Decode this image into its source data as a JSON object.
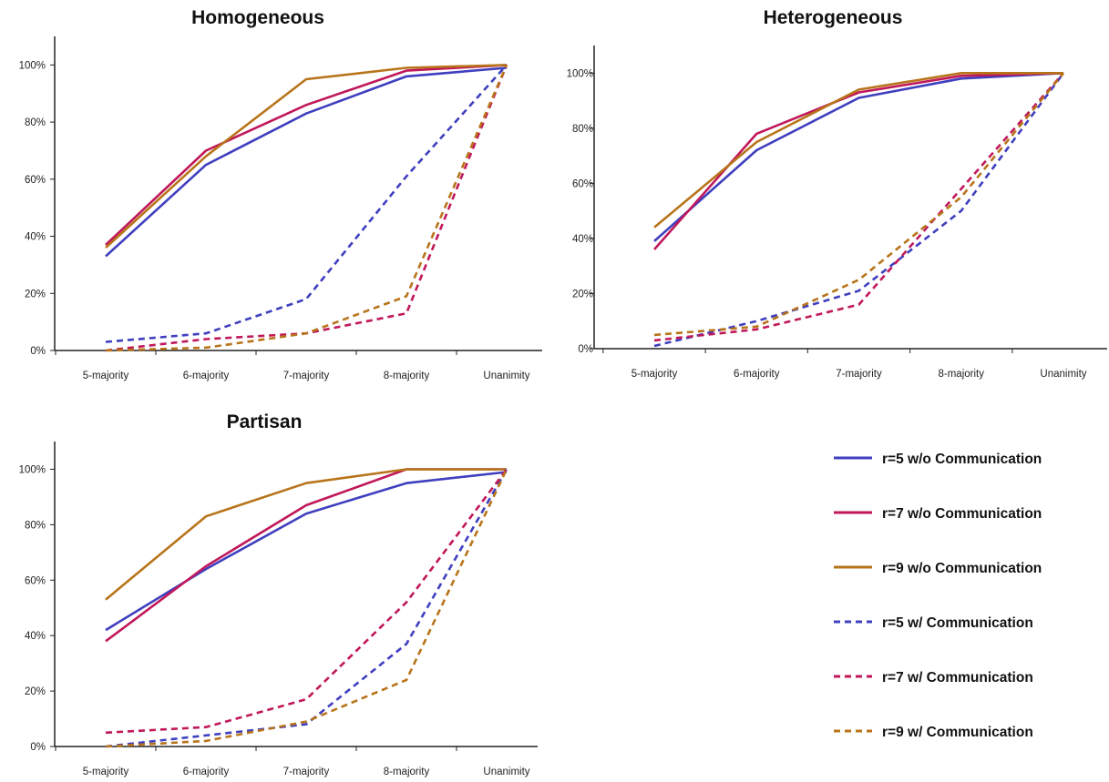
{
  "chart_data": [
    {
      "type": "line",
      "title": "Homogeneous",
      "categories": [
        "5-majority",
        "6-majority",
        "7-majority",
        "8-majority",
        "Unanimity"
      ],
      "ylim": [
        0,
        110
      ],
      "yticks": [
        "0%",
        "20%",
        "40%",
        "60%",
        "80%",
        "100%"
      ],
      "series": [
        {
          "name": "r=5 w/o Communication",
          "values": [
            33,
            65,
            83,
            96,
            99
          ]
        },
        {
          "name": "r=7 w/o Communication",
          "values": [
            37,
            70,
            86,
            98,
            100
          ]
        },
        {
          "name": "r=9 w/o Communication",
          "values": [
            36,
            68,
            95,
            99,
            100
          ]
        },
        {
          "name": "r=5 w/ Communication",
          "values": [
            3,
            6,
            18,
            61,
            100
          ]
        },
        {
          "name": "r=7 w/ Communication",
          "values": [
            0,
            4,
            6,
            13,
            100
          ]
        },
        {
          "name": "r=9 w/ Communication",
          "values": [
            0,
            1,
            6,
            19,
            100
          ]
        }
      ]
    },
    {
      "type": "line",
      "title": "Heterogeneous",
      "categories": [
        "5-majority",
        "6-majority",
        "7-majority",
        "8-majority",
        "Unanimity"
      ],
      "ylim": [
        0,
        110
      ],
      "yticks": [
        "0%",
        "20%",
        "40%",
        "60%",
        "80%",
        "100%"
      ],
      "series": [
        {
          "name": "r=5 w/o Communication",
          "values": [
            39,
            72,
            91,
            98,
            100
          ]
        },
        {
          "name": "r=7 w/o Communication",
          "values": [
            36,
            78,
            93,
            99,
            100
          ]
        },
        {
          "name": "r=9 w/o Communication",
          "values": [
            44,
            75,
            94,
            100,
            100
          ]
        },
        {
          "name": "r=5 w/ Communication",
          "values": [
            1,
            10,
            21,
            50,
            100
          ]
        },
        {
          "name": "r=7 w/ Communication",
          "values": [
            3,
            7,
            16,
            58,
            100
          ]
        },
        {
          "name": "r=9 w/ Communication",
          "values": [
            5,
            8,
            25,
            55,
            100
          ]
        }
      ]
    },
    {
      "type": "line",
      "title": "Partisan",
      "categories": [
        "5-majority",
        "6-majority",
        "7-majority",
        "8-majority",
        "Unanimity"
      ],
      "ylim": [
        0,
        110
      ],
      "yticks": [
        "0%",
        "20%",
        "40%",
        "60%",
        "80%",
        "100%"
      ],
      "series": [
        {
          "name": "r=5 w/o Communication",
          "values": [
            42,
            64,
            84,
            95,
            99
          ]
        },
        {
          "name": "r=7 w/o Communication",
          "values": [
            38,
            65,
            87,
            100,
            100
          ]
        },
        {
          "name": "r=9 w/o Communication",
          "values": [
            53,
            83,
            95,
            100,
            100
          ]
        },
        {
          "name": "r=5 w/ Communication",
          "values": [
            0,
            4,
            8,
            37,
            100
          ]
        },
        {
          "name": "r=7 w/ Communication",
          "values": [
            5,
            7,
            17,
            52,
            100
          ]
        },
        {
          "name": "r=9 w/ Communication",
          "values": [
            0,
            2,
            9,
            24,
            100
          ]
        }
      ]
    }
  ],
  "legend": [
    {
      "label": "r=5 w/o Communication",
      "color": "#3f3fbf",
      "style": "solid"
    },
    {
      "label": "r=7 w/o Communication",
      "color": "#c0185a",
      "style": "solid"
    },
    {
      "label": "r=9 w/o Communication",
      "color": "#b8741a",
      "style": "solid"
    },
    {
      "label": "r=5 w/ Communication",
      "color": "#3f3fbf",
      "style": "dashed"
    },
    {
      "label": "r=7 w/ Communication",
      "color": "#c0185a",
      "style": "dashed"
    },
    {
      "label": "r=9 w/ Communication",
      "color": "#b8741a",
      "style": "dashed"
    }
  ]
}
